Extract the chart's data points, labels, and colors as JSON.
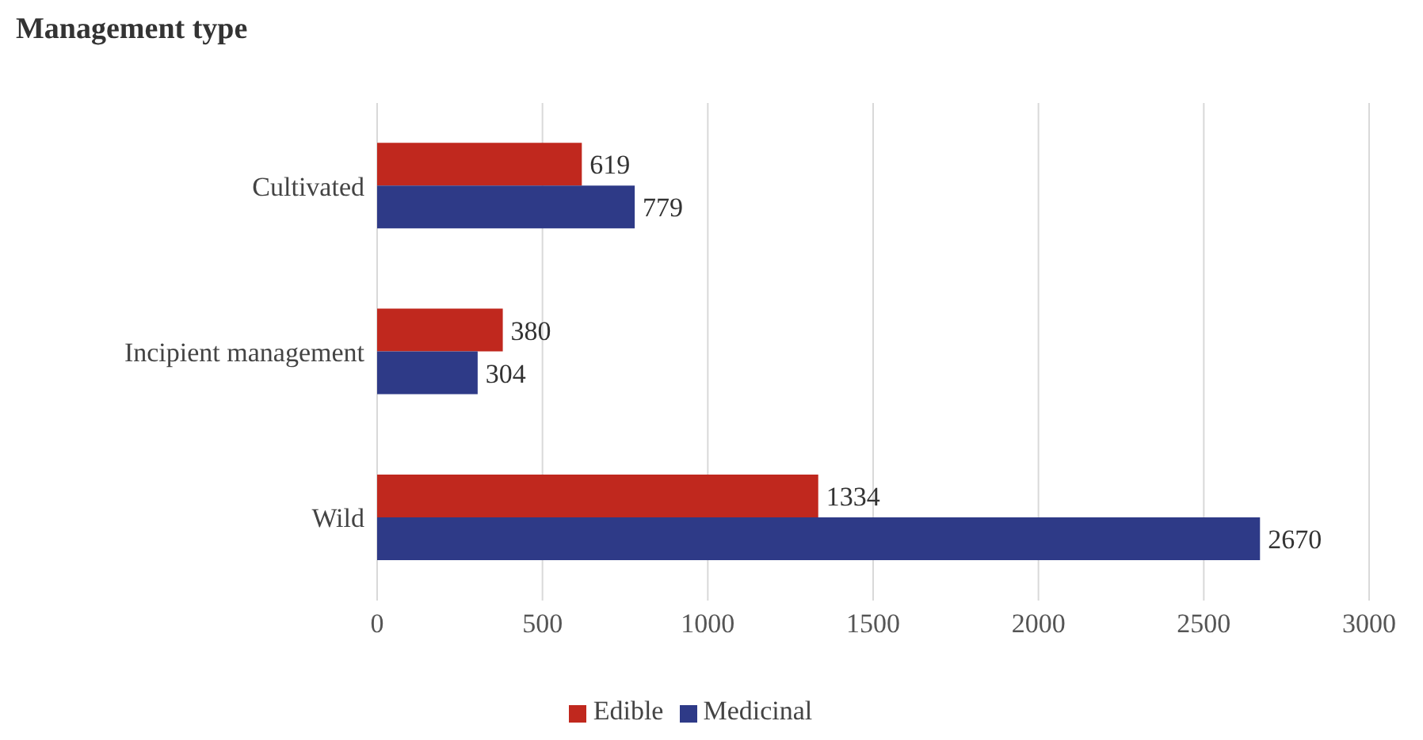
{
  "chart_data": {
    "type": "bar",
    "orientation": "horizontal",
    "title": "Management type",
    "categories": [
      "Cultivated",
      "Incipient management",
      "Wild"
    ],
    "series": [
      {
        "name": "Edible",
        "color": "#c0281e",
        "values": [
          619,
          380,
          1334
        ]
      },
      {
        "name": "Medicinal",
        "color": "#2e3a87",
        "values": [
          779,
          304,
          2670
        ]
      }
    ],
    "xlim": [
      0,
      3000
    ],
    "xticks": [
      0,
      500,
      1000,
      1500,
      2000,
      2500,
      3000
    ],
    "grid": "x",
    "legend": "bottom",
    "data_labels": true
  }
}
